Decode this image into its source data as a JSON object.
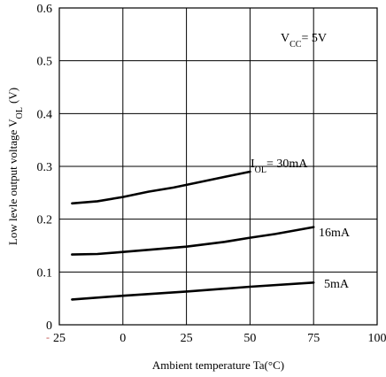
{
  "chart_data": {
    "type": "line",
    "title": "",
    "xlabel": "Ambient temperature Ta(°C)",
    "ylabel": "Low levle output voltage V",
    "ylabel_sub": "OL",
    "ylabel_unit": "(V)",
    "xlim": [
      -25,
      100
    ],
    "ylim": [
      0,
      0.6
    ],
    "x_ticks": [
      -25,
      0,
      25,
      50,
      75,
      100
    ],
    "x_tick_labels": [
      "25",
      "0",
      "25",
      "50",
      "75",
      "100"
    ],
    "x_tick_minus_marker": "-",
    "y_ticks": [
      0,
      0.1,
      0.2,
      0.3,
      0.4,
      0.5,
      0.6
    ],
    "y_tick_labels": [
      "0",
      "0.1",
      "0.2",
      "0.3",
      "0.4",
      "0.5",
      "0.6"
    ],
    "grid": true,
    "annotation": {
      "main": "V",
      "sub": "CC",
      "rest": "= 5V"
    },
    "series": [
      {
        "label_main": "I",
        "label_sub": "OL",
        "label_rest": "=  30mA",
        "points": [
          [
            -20,
            0.23
          ],
          [
            -10,
            0.234
          ],
          [
            0,
            0.242
          ],
          [
            10,
            0.252
          ],
          [
            20,
            0.26
          ],
          [
            30,
            0.27
          ],
          [
            40,
            0.28
          ],
          [
            50,
            0.29
          ]
        ]
      },
      {
        "label_main": "16mA",
        "label_sub": "",
        "label_rest": "",
        "points": [
          [
            -20,
            0.133
          ],
          [
            -10,
            0.134
          ],
          [
            0,
            0.138
          ],
          [
            10,
            0.142
          ],
          [
            25,
            0.148
          ],
          [
            40,
            0.157
          ],
          [
            50,
            0.165
          ],
          [
            60,
            0.172
          ],
          [
            75,
            0.185
          ]
        ]
      },
      {
        "label_main": "5mA",
        "label_sub": "",
        "label_rest": "",
        "points": [
          [
            -20,
            0.048
          ],
          [
            0,
            0.055
          ],
          [
            25,
            0.063
          ],
          [
            50,
            0.072
          ],
          [
            75,
            0.08
          ]
        ]
      }
    ]
  }
}
